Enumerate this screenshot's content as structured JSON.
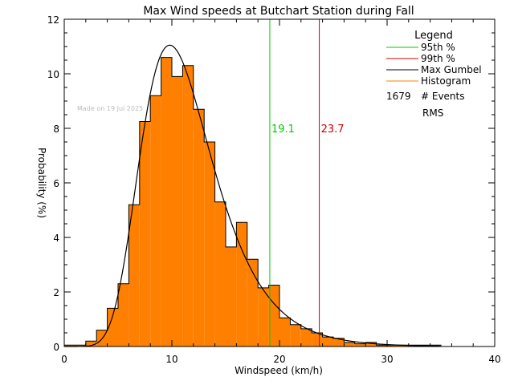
{
  "chart_data": {
    "type": "bar",
    "title": "Max Wind speeds at Butchart Station during Fall",
    "xlabel": "Windspeed (km/h)",
    "ylabel": "Probability  (%)",
    "xlim": [
      0,
      40
    ],
    "ylim": [
      0,
      12
    ],
    "xticks": [
      "0",
      "10",
      "20",
      "30",
      "40"
    ],
    "yticks": [
      "0",
      "2",
      "4",
      "6",
      "8",
      "10",
      "12"
    ],
    "watermark": "Made on 19 Jul 2025",
    "legend": {
      "title": "Legend",
      "position": "top-right",
      "entries": [
        {
          "label": "95th %",
          "color": "#00cc00"
        },
        {
          "label": "99th %",
          "color": "#cc0000"
        },
        {
          "label": "Max Gumbel",
          "color": "#000000"
        },
        {
          "label": "Histogram",
          "color": "#ff8000"
        }
      ],
      "events_count": "1679",
      "events_label": "# Events",
      "rms_label": "RMS"
    },
    "histogram": {
      "bin_width": 1,
      "bin_starts": [
        0,
        1,
        2,
        3,
        4,
        5,
        6,
        7,
        8,
        9,
        10,
        11,
        12,
        13,
        14,
        15,
        16,
        17,
        18,
        19,
        20,
        21,
        22,
        23,
        24,
        25,
        26,
        27,
        28,
        29,
        30,
        31,
        32,
        33,
        34
      ],
      "values": [
        0.05,
        0.05,
        0.2,
        0.6,
        1.4,
        2.3,
        5.2,
        8.25,
        9.2,
        10.6,
        9.9,
        10.3,
        8.7,
        7.5,
        5.3,
        3.65,
        4.55,
        3.2,
        2.15,
        2.25,
        1.05,
        0.8,
        0.65,
        0.5,
        0.35,
        0.3,
        0.15,
        0.1,
        0.15,
        0.05,
        0.05,
        0.05,
        0.05,
        0.05,
        0.05
      ]
    },
    "gumbel": {
      "mode": 9.8,
      "scale": 3.35,
      "peak": 11.05
    },
    "percentile_lines": [
      {
        "name": "95th %",
        "x": 19.1,
        "label": "19.1",
        "color": "#00cc00"
      },
      {
        "name": "99th %",
        "x": 23.7,
        "label": "23.7",
        "color": "#cc0000"
      }
    ],
    "colors": {
      "histogram_fill": "#ff8000",
      "histogram_edge": "#000000",
      "curve": "#000000",
      "axes": "#000000",
      "watermark": "#bbbbbb"
    },
    "grid": false
  }
}
